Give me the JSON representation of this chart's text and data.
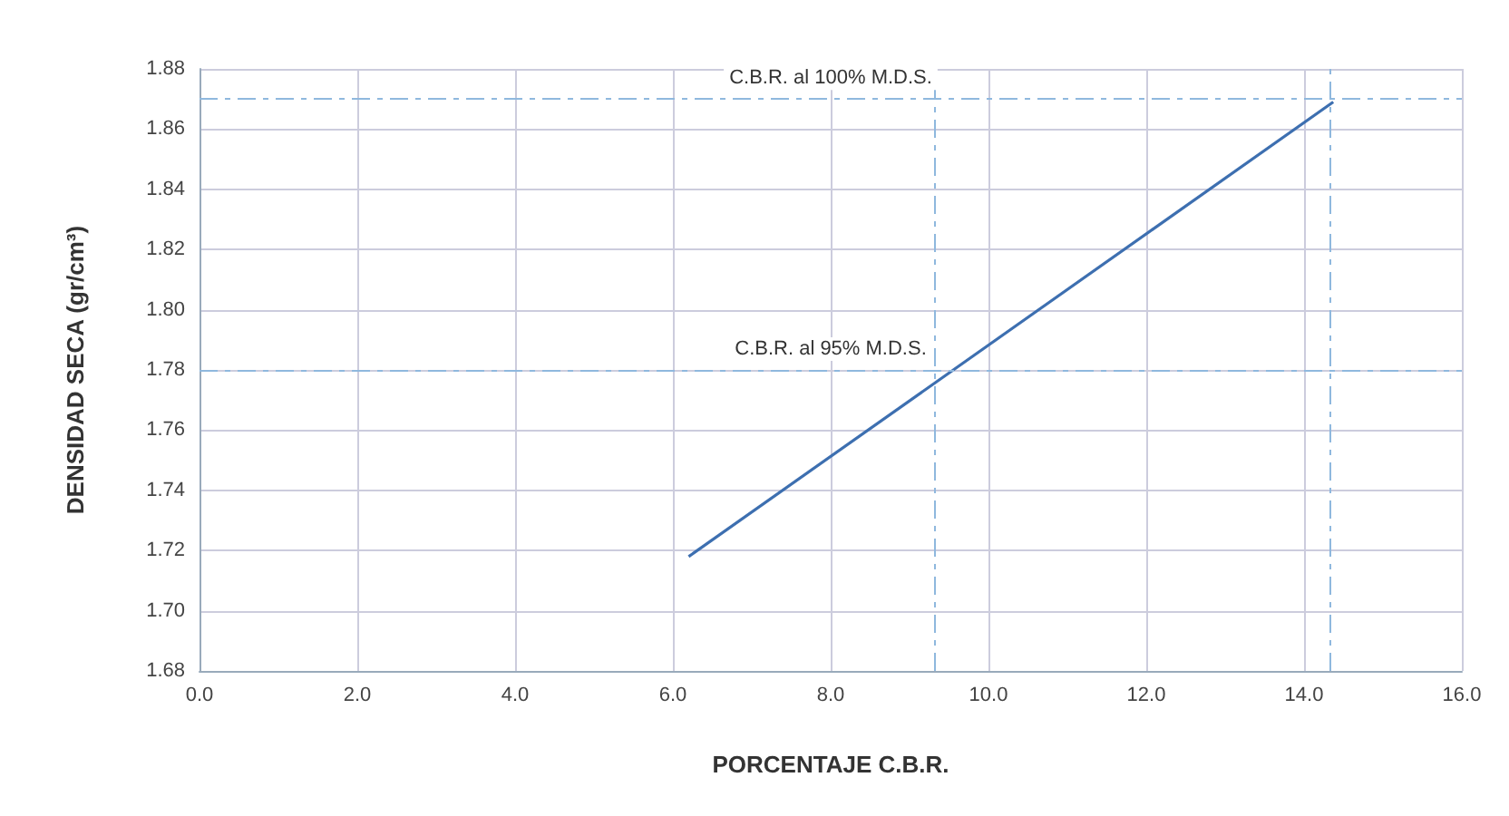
{
  "chart_data": {
    "type": "line",
    "xlabel": "PORCENTAJE C.B.R.",
    "ylabel": "DENSIDAD SECA (gr/cm³)",
    "x": [
      6.2,
      14.37
    ],
    "series": [
      {
        "color": "#3d6fb0",
        "values": [
          1.718,
          1.869
        ]
      }
    ],
    "xlim": [
      0,
      16
    ],
    "ylim": [
      1.68,
      1.88
    ],
    "xticks": [
      {
        "value": 0,
        "label": "0.0"
      },
      {
        "value": 2,
        "label": "2.0"
      },
      {
        "value": 4,
        "label": "4.0"
      },
      {
        "value": 6,
        "label": "6.0"
      },
      {
        "value": 8,
        "label": "8.0"
      },
      {
        "value": 10,
        "label": "10.0"
      },
      {
        "value": 12,
        "label": "12.0"
      },
      {
        "value": 14,
        "label": "14.0"
      },
      {
        "value": 16,
        "label": "16.0"
      }
    ],
    "yticks": [
      1.68,
      {
        "value": 1.7,
        "label": "1.70"
      },
      1.72,
      1.74,
      1.76,
      1.78,
      {
        "value": 1.8,
        "label": "1.80"
      },
      1.82,
      1.84,
      1.86,
      1.88
    ],
    "ref_lines": [
      {
        "axis": "y",
        "value": 1.78,
        "label": "C.B.R. al 95% M.D.S.",
        "color": "#8fb8de",
        "line_style": "dashed"
      },
      {
        "axis": "y",
        "value": 1.87,
        "label": "C.B.R. al 100% M.D.S.",
        "color": "#8fb8de",
        "line_style": "dashed"
      },
      {
        "axis": "x",
        "value": 9.31,
        "color": "#8fb8de",
        "line_style": "dashed"
      },
      {
        "axis": "x",
        "value": 14.32,
        "color": "#8fb8de",
        "line_style": "dashed"
      }
    ],
    "grid": true,
    "marker": "none",
    "line_style": "solid"
  }
}
